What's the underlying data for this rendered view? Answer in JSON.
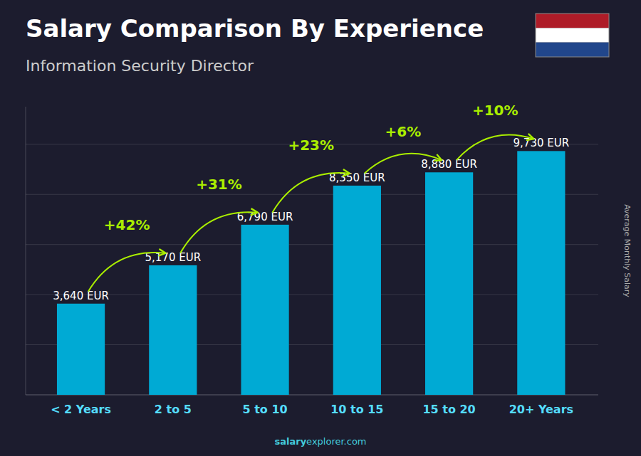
{
  "chart_data": {
    "type": "bar",
    "title": "Salary Comparison By Experience",
    "subtitle": "Information Security Director",
    "categories": [
      "< 2 Years",
      "2 to 5",
      "5 to 10",
      "10 to 15",
      "15 to 20",
      "20+ Years"
    ],
    "values": [
      3640,
      5170,
      6790,
      8350,
      8880,
      9730
    ],
    "value_labels": [
      "3,640 EUR",
      "5,170 EUR",
      "6,790 EUR",
      "8,350 EUR",
      "8,880 EUR",
      "9,730 EUR"
    ],
    "data_labels": true,
    "color": "#00aad4",
    "annotations": [
      {
        "text": "+42%",
        "color": "#aaee00"
      },
      {
        "text": "+31%",
        "color": "#aaee00"
      },
      {
        "text": "+23%",
        "color": "#aaee00"
      },
      {
        "text": "+6%",
        "color": "#aaee00"
      },
      {
        "text": "+10%",
        "color": "#aaee00"
      }
    ],
    "ylabel": "Average Monthly Salary",
    "ylim": [
      0,
      11500
    ],
    "yticks": [
      0,
      2000,
      4000,
      6000,
      8000,
      10000
    ],
    "grid": true,
    "tick_labels": "x",
    "flag_colors": [
      "#AE1C28",
      "#FFFFFF",
      "#21468B"
    ],
    "source_bold": "salary",
    "source_rest": "explorer.com"
  }
}
